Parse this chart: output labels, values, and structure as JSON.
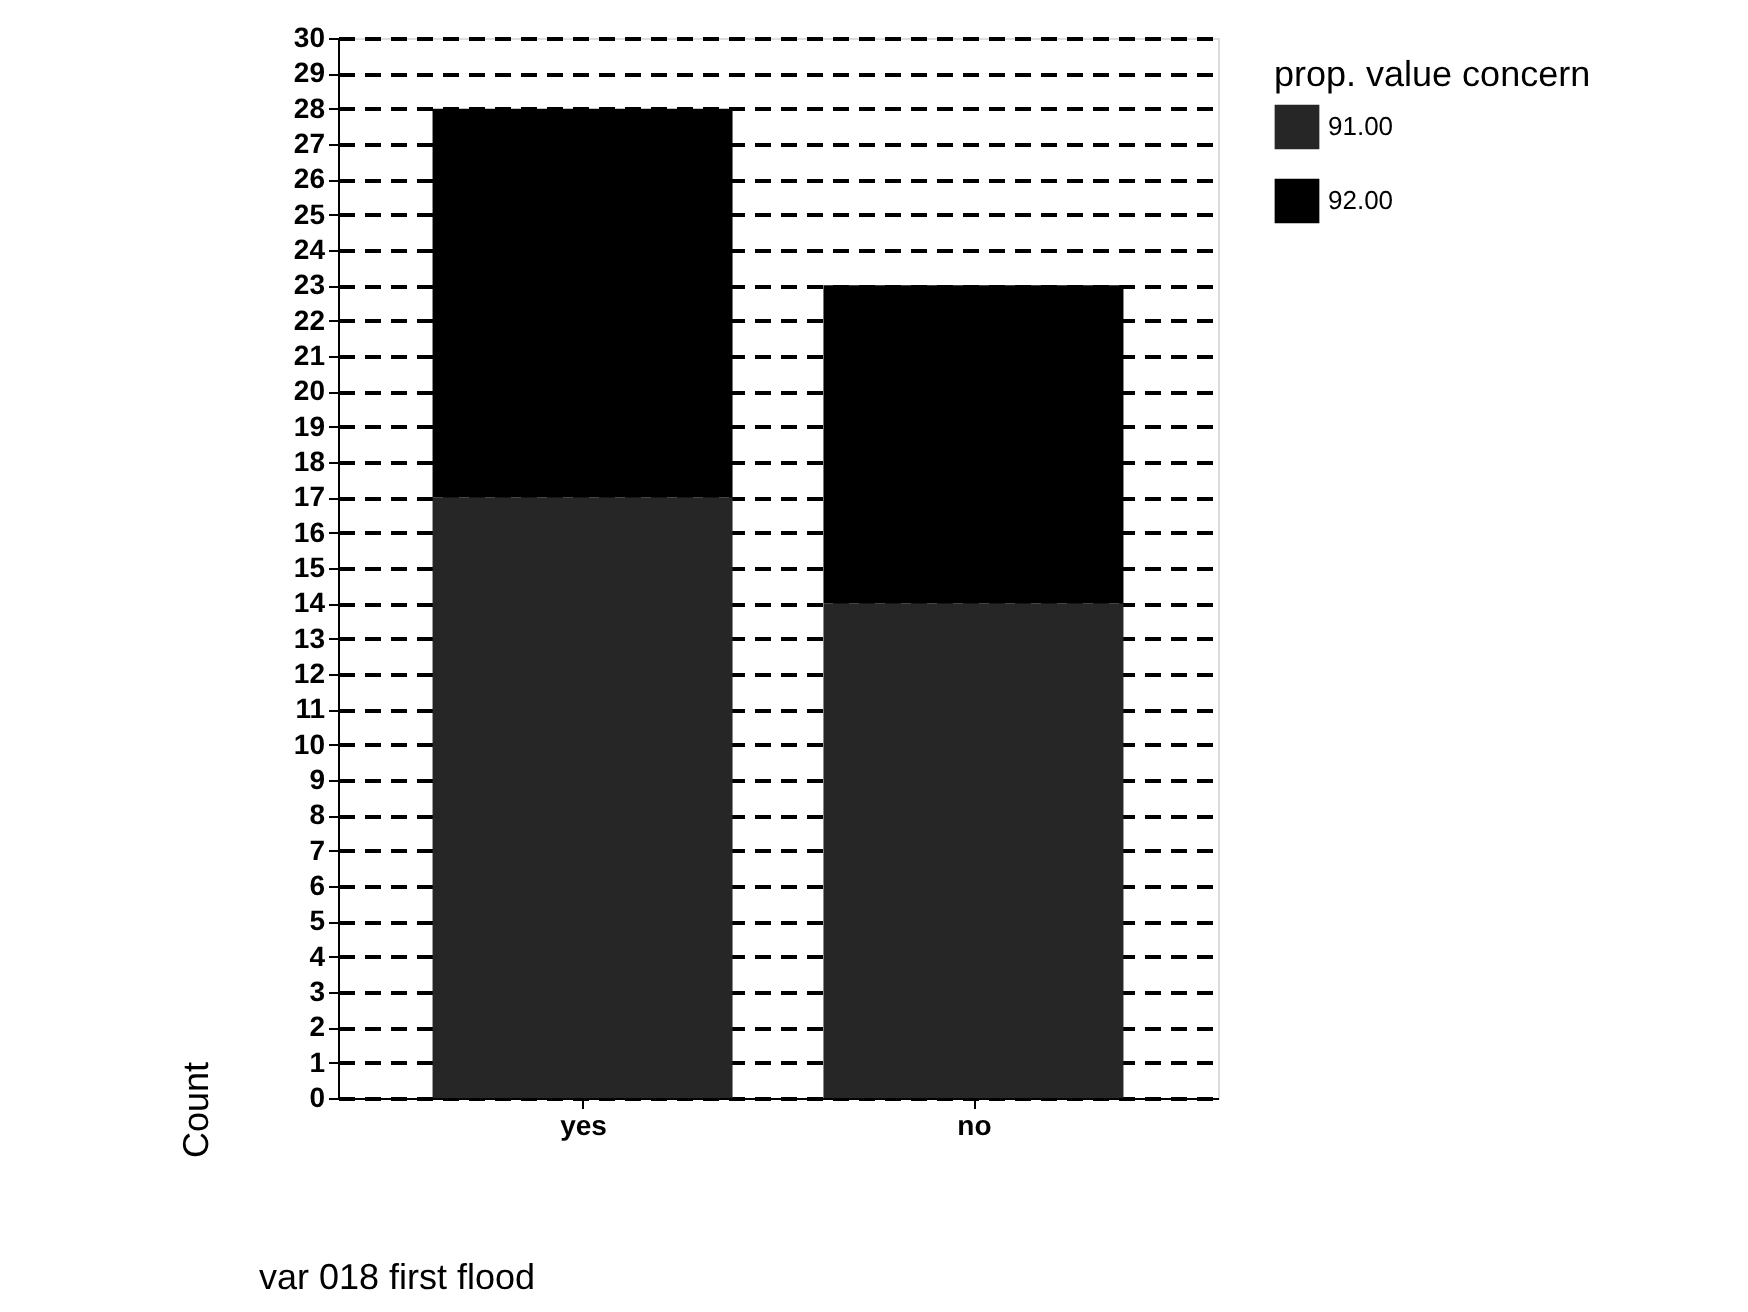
{
  "chart_data": {
    "type": "bar",
    "stacked": true,
    "xlabel": "var 018 first flood",
    "ylabel": "Count",
    "legend_title": "prop. value concern",
    "legend": "right",
    "grid": "y",
    "categories": [
      "yes",
      "no"
    ],
    "series": [
      {
        "name": "91.00",
        "color": "#262626",
        "values": [
          17,
          14
        ]
      },
      {
        "name": "92.00",
        "color": "#000000",
        "values": [
          11,
          9
        ]
      }
    ],
    "ylim": [
      0,
      30
    ],
    "yticks": [
      0,
      1,
      2,
      3,
      4,
      5,
      6,
      7,
      8,
      9,
      10,
      11,
      12,
      13,
      14,
      15,
      16,
      17,
      18,
      19,
      20,
      21,
      22,
      23,
      24,
      25,
      26,
      27,
      28,
      29,
      30
    ]
  }
}
